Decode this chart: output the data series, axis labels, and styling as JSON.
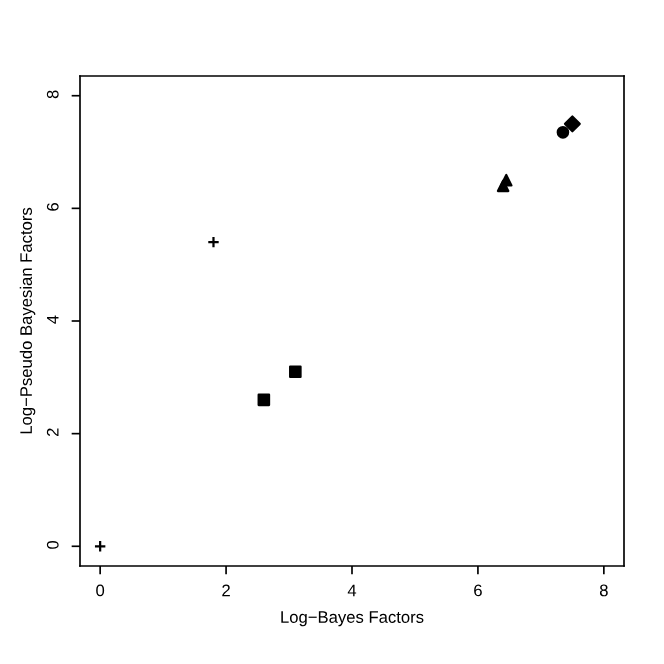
{
  "chart_data": {
    "type": "scatter",
    "xlabel": "Log−Bayes Factors",
    "ylabel": "Log−Pseudo Bayesian Factors",
    "xlim": [
      -0.32,
      8.32
    ],
    "ylim": [
      -0.35,
      8.35
    ],
    "xticks": [
      0,
      2,
      4,
      6,
      8
    ],
    "yticks": [
      0,
      2,
      4,
      6,
      8
    ],
    "grid": false,
    "legend": false,
    "series": [
      {
        "color": "#000000",
        "marker": "cross",
        "x": [
          0
        ],
        "values": [
          0
        ]
      },
      {
        "color": "#000000",
        "marker": "cross",
        "x": [
          1.8
        ],
        "values": [
          5.4
        ]
      },
      {
        "color": "#000000",
        "marker": "square",
        "x": [
          2.6
        ],
        "values": [
          2.6
        ]
      },
      {
        "color": "#000000",
        "marker": "square",
        "x": [
          3.1
        ],
        "values": [
          3.1
        ]
      },
      {
        "color": "#000000",
        "marker": "triangle",
        "x": [
          6.4
        ],
        "values": [
          6.4
        ]
      },
      {
        "color": "#000000",
        "marker": "triangle",
        "x": [
          6.45
        ],
        "values": [
          6.5
        ]
      },
      {
        "color": "#000000",
        "marker": "circle",
        "x": [
          7.35
        ],
        "values": [
          7.35
        ]
      },
      {
        "color": "#000000",
        "marker": "diamond",
        "x": [
          7.5
        ],
        "values": [
          7.5
        ]
      }
    ]
  }
}
